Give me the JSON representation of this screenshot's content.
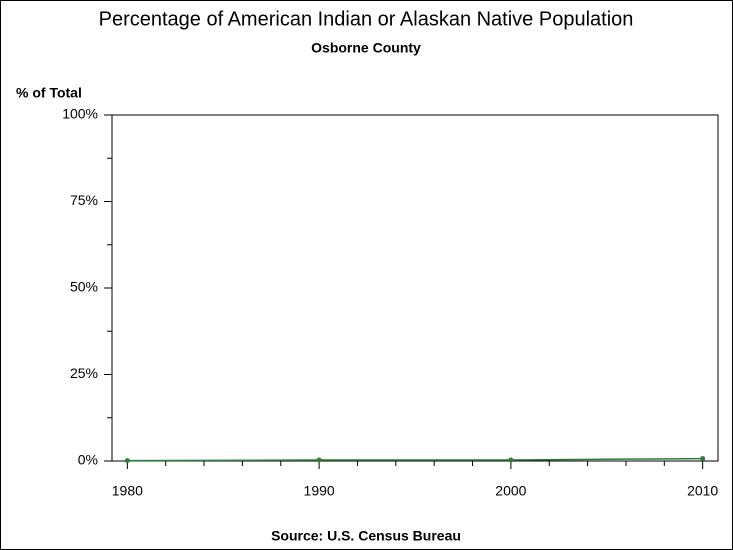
{
  "chart_data": {
    "type": "line",
    "title": "Percentage of American Indian or Alaskan Native Population",
    "subtitle": "Osborne County",
    "y_label": "% of Total",
    "footnote": "Source: U.S. Census Bureau",
    "x": [
      1980,
      1990,
      2000,
      2010
    ],
    "series": [
      {
        "name": "Osborne County",
        "color": "#2e7d32",
        "values": [
          0.1,
          0.3,
          0.3,
          0.7
        ]
      }
    ],
    "xlim": [
      1979.2,
      2010.8
    ],
    "xticks": [
      1980,
      1990,
      2000,
      2010
    ],
    "xminorticks": [
      1982,
      1984,
      1986,
      1988,
      1992,
      1994,
      1996,
      1998,
      2002,
      2004,
      2006,
      2008
    ],
    "ylim": [
      0,
      100
    ],
    "yticks": [
      {
        "value": 0,
        "label": "0%"
      },
      {
        "value": 25,
        "label": "25%"
      },
      {
        "value": 50,
        "label": "50%"
      },
      {
        "value": 75,
        "label": "75%"
      },
      {
        "value": 100,
        "label": "100%"
      }
    ],
    "yminorticks": [
      12.5,
      37.5,
      62.5,
      87.5
    ],
    "grid": false
  }
}
